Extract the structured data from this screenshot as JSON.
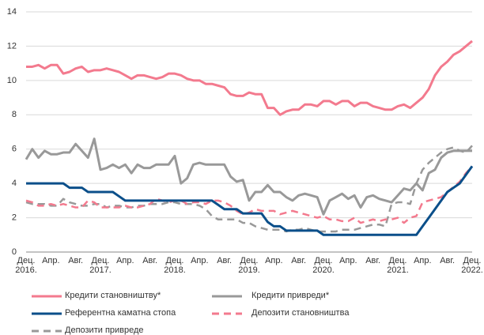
{
  "chart_data": {
    "type": "line",
    "categories": [
      "Дец. 2016.",
      null,
      null,
      null,
      "Апр.",
      null,
      null,
      null,
      "Авг.",
      null,
      null,
      null,
      "Дец. 2017.",
      null,
      null,
      null,
      "Апр.",
      null,
      null,
      null,
      "Авг.",
      null,
      null,
      null,
      "Дец. 2018.",
      null,
      null,
      null,
      "Апр.",
      null,
      null,
      null,
      "Авг.",
      null,
      null,
      null,
      "Дец. 2019.",
      null,
      null,
      null,
      "Апр.",
      null,
      null,
      null,
      "Авг.",
      null,
      null,
      null,
      "Дец. 2020.",
      null,
      null,
      null,
      "Апр.",
      null,
      null,
      null,
      "Авг.",
      null,
      null,
      null,
      "Дец. 2021.",
      null,
      null,
      null,
      "Апр.",
      null,
      null,
      null,
      "Авг.",
      null,
      null,
      null,
      "Дец. 2022."
    ],
    "series": [
      {
        "name": "Кредити становништву*",
        "color": "#f37a8e",
        "dash": false,
        "values": [
          10.8,
          10.8,
          10.9,
          10.7,
          10.9,
          10.9,
          10.4,
          10.5,
          10.7,
          10.8,
          10.5,
          10.6,
          10.6,
          10.7,
          10.6,
          10.5,
          10.3,
          10.1,
          10.3,
          10.3,
          10.2,
          10.1,
          10.2,
          10.4,
          10.4,
          10.3,
          10.1,
          10.0,
          10.0,
          9.8,
          9.8,
          9.7,
          9.6,
          9.2,
          9.1,
          9.1,
          9.3,
          9.2,
          9.2,
          8.4,
          8.4,
          8.0,
          8.2,
          8.3,
          8.3,
          8.6,
          8.6,
          8.5,
          8.8,
          8.8,
          8.6,
          8.8,
          8.8,
          8.5,
          8.7,
          8.7,
          8.5,
          8.4,
          8.3,
          8.3,
          8.5,
          8.6,
          8.4,
          8.7,
          9.0,
          9.5,
          10.3,
          10.8,
          11.1,
          11.5,
          11.7,
          12.0,
          12.3
        ]
      },
      {
        "name": "Кредити привреди*",
        "color": "#999999",
        "dash": false,
        "values": [
          5.4,
          6.0,
          5.5,
          5.9,
          5.7,
          5.7,
          5.8,
          5.8,
          6.3,
          5.9,
          5.5,
          6.6,
          4.8,
          4.9,
          5.1,
          4.9,
          5.1,
          4.6,
          5.1,
          4.9,
          4.9,
          5.1,
          5.1,
          5.1,
          5.6,
          4.0,
          4.3,
          5.1,
          5.2,
          5.1,
          5.1,
          5.1,
          5.1,
          4.4,
          4.1,
          4.2,
          3.0,
          3.5,
          3.5,
          3.9,
          3.5,
          3.5,
          3.2,
          3.0,
          3.3,
          3.4,
          3.3,
          3.2,
          2.2,
          3.0,
          3.2,
          3.4,
          3.1,
          3.3,
          2.6,
          3.2,
          3.3,
          3.1,
          3.0,
          2.9,
          3.3,
          3.7,
          3.6,
          4.0,
          3.6,
          4.6,
          4.8,
          5.5,
          5.8,
          5.9,
          5.9,
          5.9,
          5.9
        ]
      },
      {
        "name": "Референтна каматна стопа",
        "color": "#0b4f8a",
        "dash": false,
        "values": [
          4.0,
          4.0,
          4.0,
          4.0,
          4.0,
          4.0,
          4.0,
          3.75,
          3.75,
          3.75,
          3.5,
          3.5,
          3.5,
          3.5,
          3.5,
          3.25,
          3.0,
          3.0,
          3.0,
          3.0,
          3.0,
          3.0,
          3.0,
          3.0,
          3.0,
          3.0,
          3.0,
          3.0,
          3.0,
          3.0,
          3.0,
          2.75,
          2.5,
          2.5,
          2.5,
          2.25,
          2.25,
          2.25,
          2.25,
          1.75,
          1.5,
          1.5,
          1.25,
          1.25,
          1.25,
          1.25,
          1.25,
          1.25,
          1.0,
          1.0,
          1.0,
          1.0,
          1.0,
          1.0,
          1.0,
          1.0,
          1.0,
          1.0,
          1.0,
          1.0,
          1.0,
          1.0,
          1.0,
          1.0,
          1.5,
          2.0,
          2.5,
          3.0,
          3.5,
          3.75,
          4.0,
          4.5,
          5.0
        ]
      },
      {
        "name": "Депозити становништва",
        "color": "#f37a8e",
        "dash": true,
        "values": [
          3.0,
          2.9,
          2.7,
          2.7,
          2.8,
          2.7,
          2.8,
          2.7,
          2.6,
          2.6,
          3.0,
          2.9,
          2.6,
          2.6,
          2.6,
          2.6,
          2.7,
          2.6,
          2.6,
          2.7,
          2.8,
          3.1,
          3.0,
          2.9,
          3.0,
          3.0,
          2.8,
          2.9,
          2.9,
          2.8,
          3.0,
          3.0,
          2.9,
          2.7,
          2.4,
          2.2,
          2.3,
          2.5,
          2.4,
          2.4,
          2.4,
          2.2,
          2.3,
          2.4,
          2.3,
          2.2,
          2.1,
          2.0,
          2.1,
          1.9,
          1.9,
          1.8,
          1.8,
          2.0,
          1.7,
          1.8,
          1.9,
          1.8,
          1.9,
          1.9,
          2.0,
          1.7,
          2.0,
          2.1,
          2.9,
          3.0,
          3.1,
          3.2,
          3.5,
          3.8,
          4.1,
          4.6,
          5.0
        ]
      },
      {
        "name": "Депозити привреде",
        "color": "#999999",
        "dash": true,
        "values": [
          2.9,
          2.8,
          2.8,
          2.8,
          2.7,
          2.7,
          3.1,
          2.9,
          2.8,
          2.7,
          2.7,
          2.8,
          2.8,
          2.6,
          2.7,
          2.7,
          2.6,
          2.6,
          2.7,
          2.7,
          2.8,
          2.8,
          2.8,
          2.9,
          2.9,
          2.8,
          2.8,
          2.8,
          2.7,
          2.5,
          2.1,
          1.9,
          1.9,
          1.9,
          1.9,
          1.7,
          1.7,
          1.5,
          1.4,
          1.3,
          1.3,
          1.3,
          1.2,
          1.3,
          1.3,
          1.4,
          1.3,
          1.2,
          1.2,
          1.2,
          1.2,
          1.3,
          1.3,
          1.3,
          1.4,
          1.5,
          1.6,
          1.6,
          1.5,
          2.8,
          2.9,
          2.9,
          2.8,
          4.0,
          4.8,
          5.2,
          5.5,
          5.8,
          6.0,
          6.1,
          5.9,
          5.8,
          6.2
        ]
      }
    ],
    "ylim": [
      0,
      14
    ],
    "yticks": [
      0,
      2,
      4,
      6,
      8,
      10,
      12,
      14
    ],
    "grid": true
  }
}
